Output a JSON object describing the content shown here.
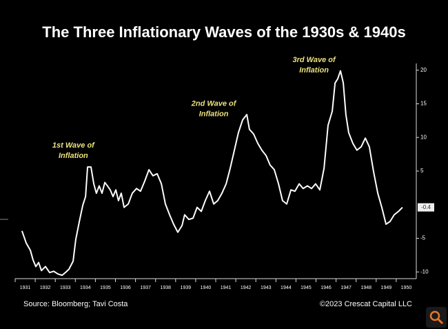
{
  "chart_data": {
    "type": "line",
    "title": "The Three Inflationary Waves of the 1930s & 1940s",
    "source": "Source: Bloomberg; Tavi Costa",
    "copyright": "©2023 Crescat Capital LLC",
    "annotations": [
      {
        "lines": [
          "1st Wave of",
          "Inflation"
        ],
        "x": 1933.9,
        "y": 8.8
      },
      {
        "lines": [
          "2nd Wave of",
          "Inflation"
        ],
        "x": 1940.9,
        "y": 15.0
      },
      {
        "lines": [
          "3rd Wave of",
          "Inflation"
        ],
        "x": 1945.9,
        "y": 21.5
      }
    ],
    "series": [
      {
        "color": "#ffffff",
        "x": [
          1931.34,
          1931.55,
          1931.76,
          1931.89,
          1932.03,
          1932.17,
          1932.31,
          1932.51,
          1932.72,
          1932.92,
          1933.13,
          1933.34,
          1933.54,
          1933.68,
          1933.89,
          1934.02,
          1934.2,
          1934.37,
          1934.51,
          1934.61,
          1934.78,
          1934.92,
          1935.05,
          1935.19,
          1935.33,
          1935.47,
          1935.6,
          1935.74,
          1935.88,
          1936.02,
          1936.15,
          1936.29,
          1936.43,
          1936.64,
          1936.84,
          1937.05,
          1937.25,
          1937.46,
          1937.67,
          1937.87,
          1938.08,
          1938.29,
          1938.49,
          1938.7,
          1938.9,
          1939.11,
          1939.32,
          1939.45,
          1939.66,
          1939.87,
          1940.07,
          1940.28,
          1940.48,
          1940.69,
          1940.9,
          1941.1,
          1941.31,
          1941.52,
          1941.72,
          1941.93,
          1942.13,
          1942.34,
          1942.55,
          1942.68,
          1942.89,
          1943.1,
          1943.3,
          1943.51,
          1943.71,
          1943.92,
          1944.13,
          1944.33,
          1944.54,
          1944.75,
          1944.95,
          1945.16,
          1945.36,
          1945.57,
          1945.78,
          1945.98,
          1946.19,
          1946.4,
          1946.6,
          1946.81,
          1946.95,
          1947.08,
          1947.22,
          1947.36,
          1947.49,
          1947.63,
          1947.84,
          1948.04,
          1948.25,
          1948.46,
          1948.66,
          1948.87,
          1949.08,
          1949.28,
          1949.49,
          1949.69,
          1949.9,
          1950.11,
          1950.31
        ],
        "values": [
          -3.9,
          -5.7,
          -6.8,
          -8.2,
          -9.2,
          -8.6,
          -9.8,
          -9.2,
          -10.1,
          -9.9,
          -10.3,
          -10.5,
          -10,
          -9.6,
          -8.4,
          -5.2,
          -2.5,
          -0.1,
          1.2,
          5.6,
          5.6,
          3.1,
          1.7,
          2.8,
          1.7,
          3.3,
          2.8,
          2.2,
          1.2,
          2.2,
          0.6,
          1.7,
          -0.4,
          0.1,
          1.7,
          2.4,
          2.0,
          3.5,
          5.2,
          4.3,
          4.6,
          3.1,
          0.1,
          -1.5,
          -2.9,
          -4.1,
          -3.1,
          -1.5,
          -2.2,
          -2.0,
          -0.4,
          -1.0,
          0.6,
          2.0,
          0.1,
          0.6,
          1.7,
          3.1,
          5.4,
          8.1,
          10.7,
          12.6,
          13.4,
          11.2,
          10.5,
          9.1,
          8.1,
          7.3,
          5.9,
          5.2,
          3.1,
          0.6,
          0.1,
          2.2,
          2.0,
          3.1,
          2.4,
          2.8,
          2.4,
          3.1,
          2.2,
          5.4,
          11.8,
          13.9,
          18.1,
          18.7,
          19.9,
          18.1,
          13.4,
          10.7,
          9.1,
          8.1,
          8.6,
          9.9,
          8.6,
          4.9,
          1.7,
          -0.4,
          -2.9,
          -2.5,
          -1.5,
          -1.0,
          -0.4
        ],
        "value_labels": {
          "102": "-0.4"
        }
      }
    ],
    "xlim": [
      1931,
      1951
    ],
    "xticks": [
      1931,
      1932,
      1933,
      1934,
      1935,
      1936,
      1937,
      1938,
      1939,
      1940,
      1941,
      1942,
      1943,
      1944,
      1945,
      1946,
      1947,
      1948,
      1949,
      1950
    ],
    "ylim": [
      -11,
      21
    ],
    "yticks": [
      -10,
      -5,
      5,
      10,
      15,
      20
    ]
  }
}
